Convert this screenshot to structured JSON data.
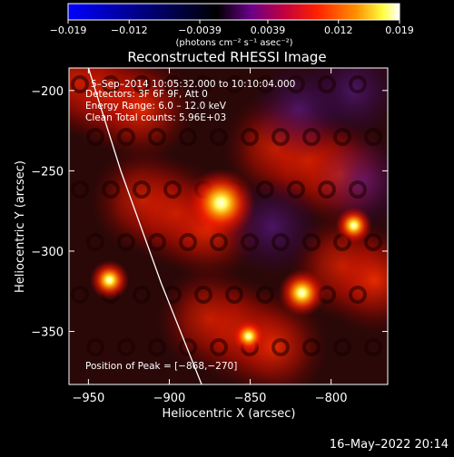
{
  "chart_data": {
    "type": "heatmap",
    "title": "Reconstructed RHESSI Image",
    "xlabel": "Heliocentric X (arcsec)",
    "ylabel": "Heliocentric Y (arcsec)",
    "xlim": [
      -962,
      -765
    ],
    "ylim": [
      -383,
      -186
    ],
    "x_ticks": [
      -950,
      -900,
      -850,
      -800
    ],
    "x_tick_labels": [
      "−950",
      "−900",
      "−850",
      "−800"
    ],
    "y_ticks": [
      -200,
      -250,
      -300,
      -350
    ],
    "y_tick_labels": [
      "−200",
      "−250",
      "−300",
      "−350"
    ],
    "colorbar": {
      "range": [
        -0.019,
        0.019
      ],
      "ticks": [
        -0.019,
        -0.012,
        -0.0039,
        0.0039,
        0.012,
        0.019
      ],
      "tick_labels": [
        "−0.019",
        "−0.012",
        "−0.0039",
        "0.0039",
        "0.012",
        "0.019"
      ],
      "units": "(photons cm⁻² s⁻¹ asec⁻²)"
    },
    "annotations": {
      "time_range": "5–Sep–2014 10:05:32.000 to 10:10:04.000",
      "detectors": "Detectors: 3F 6F 9F, Att 0",
      "energy": "Energy Range: 6.0 – 12.0 keV",
      "clean": "Clean    Total counts: 5.96E+03",
      "peak": "Position of Peak = [−868,−270]"
    },
    "sources": [
      {
        "x": -868,
        "y": -270,
        "value": 0.019
      },
      {
        "x": -818,
        "y": -326,
        "value": 0.011
      },
      {
        "x": -937,
        "y": -318,
        "value": 0.008
      },
      {
        "x": -786,
        "y": -284,
        "value": 0.007
      },
      {
        "x": -851,
        "y": -353,
        "value": 0.006
      }
    ],
    "limb": [
      {
        "x": -950,
        "y": -186
      },
      {
        "x": -930,
        "y": -250
      },
      {
        "x": -905,
        "y": -320
      },
      {
        "x": -880,
        "y": -383
      }
    ]
  },
  "date_stamp": "16–May–2022 20:14",
  "colors": {
    "background": "#000000",
    "colormap": [
      "#0000ff",
      "#000000",
      "#aa00cc",
      "#ff2000",
      "#ff8800",
      "#ffff00",
      "#ffffff"
    ]
  }
}
